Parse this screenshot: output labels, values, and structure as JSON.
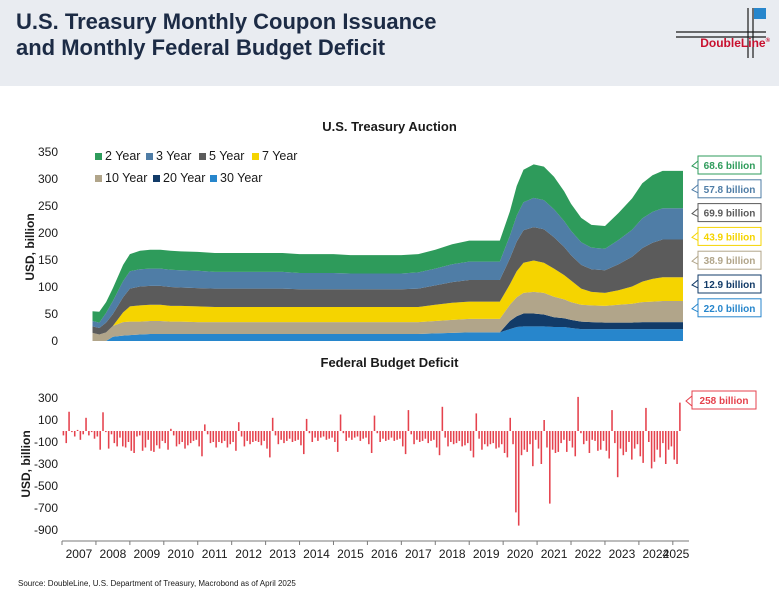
{
  "header": {
    "title_line1": "U.S. Treasury Monthly Coupon Issuance",
    "title_line2": "and Monthly Federal Budget Deficit",
    "logo_text": "DoubleLine",
    "logo_mark": "®"
  },
  "colors": {
    "y2": "#2e9b5b",
    "y3": "#4f7da6",
    "y5": "#5b5b5b",
    "y7": "#f5d400",
    "y10": "#b1a58a",
    "y20": "#123b68",
    "y30": "#2786cc",
    "deficit": "#e5424d",
    "header_bg": "#e9ecf1",
    "brand_red": "#c8102e"
  },
  "source": "Source: DoubleLine, U.S. Department of Treasury, Macrobond as of April 2025",
  "chart_data": [
    {
      "type": "area",
      "stacked": true,
      "title": "U.S. Treasury Auction",
      "ylabel": "USD, billion",
      "ylim": [
        0,
        350
      ],
      "yticks": [
        "0",
        "50",
        "100",
        "150",
        "200",
        "250",
        "300",
        "350"
      ],
      "legend_position": "top-left",
      "x": [
        2007.9,
        2008.1,
        2008.3,
        2008.5,
        2008.8,
        2009.0,
        2009.3,
        2009.6,
        2009.9,
        2010.2,
        2010.5,
        2011.0,
        2011.5,
        2012.0,
        2012.5,
        2013.0,
        2013.5,
        2014.0,
        2014.5,
        2015.0,
        2015.5,
        2016.0,
        2016.5,
        2017.0,
        2017.5,
        2018.0,
        2018.5,
        2019.0,
        2019.5,
        2019.9,
        2020.2,
        2020.4,
        2020.6,
        2020.9,
        2021.2,
        2021.5,
        2021.8,
        2022.0,
        2022.3,
        2022.6,
        2023.0,
        2023.4,
        2023.8,
        2024.1,
        2024.4,
        2024.7,
        2025.0,
        2025.3
      ],
      "series": [
        {
          "name": "30 Year",
          "color_key": "y30",
          "values": [
            0,
            0,
            0,
            8,
            10,
            11,
            12,
            13,
            13,
            13,
            13,
            13,
            13,
            13,
            13,
            13,
            13,
            13,
            13,
            13,
            13,
            13,
            13,
            13,
            13,
            14,
            15,
            16,
            16,
            16,
            22,
            26,
            27,
            27,
            27,
            26,
            26,
            24,
            22,
            22,
            22,
            22,
            22,
            22,
            22,
            22,
            22,
            22
          ]
        },
        {
          "name": "20 Year",
          "color_key": "y20",
          "values": [
            0,
            0,
            0,
            0,
            0,
            0,
            0,
            0,
            0,
            0,
            0,
            0,
            0,
            0,
            0,
            0,
            0,
            0,
            0,
            0,
            0,
            0,
            0,
            0,
            0,
            0,
            0,
            0,
            0,
            0,
            15,
            20,
            24,
            24,
            22,
            18,
            16,
            15,
            14,
            13,
            12,
            12,
            12,
            13,
            13,
            13,
            13,
            13
          ]
        },
        {
          "name": "10 Year",
          "color_key": "y10",
          "values": [
            15,
            12,
            16,
            20,
            25,
            25,
            24,
            24,
            24,
            23,
            23,
            22,
            22,
            22,
            22,
            22,
            22,
            22,
            22,
            22,
            22,
            22,
            22,
            22,
            22,
            23,
            24,
            25,
            25,
            25,
            30,
            35,
            38,
            40,
            40,
            38,
            35,
            33,
            31,
            31,
            31,
            33,
            35,
            37,
            38,
            39,
            39,
            39
          ]
        },
        {
          "name": "7 Year",
          "color_key": "y7",
          "values": [
            0,
            0,
            0,
            0,
            18,
            28,
            30,
            30,
            30,
            29,
            29,
            29,
            28,
            28,
            28,
            28,
            28,
            28,
            28,
            28,
            28,
            28,
            28,
            28,
            28,
            30,
            32,
            32,
            32,
            32,
            38,
            48,
            56,
            58,
            56,
            52,
            45,
            40,
            30,
            25,
            24,
            27,
            32,
            38,
            42,
            44,
            44,
            44
          ]
        },
        {
          "name": "5 Year",
          "color_key": "y5",
          "values": [
            12,
            12,
            18,
            22,
            28,
            33,
            35,
            35,
            35,
            35,
            34,
            34,
            34,
            34,
            34,
            34,
            34,
            33,
            33,
            33,
            33,
            33,
            33,
            33,
            34,
            36,
            38,
            40,
            40,
            40,
            48,
            55,
            60,
            62,
            62,
            58,
            52,
            47,
            44,
            42,
            42,
            48,
            55,
            62,
            67,
            70,
            70,
            70
          ]
        },
        {
          "name": "3 Year",
          "color_key": "y3",
          "values": [
            10,
            10,
            18,
            24,
            30,
            32,
            32,
            32,
            32,
            32,
            32,
            32,
            31,
            31,
            31,
            31,
            31,
            30,
            30,
            30,
            29,
            29,
            29,
            29,
            30,
            31,
            33,
            34,
            34,
            34,
            42,
            48,
            52,
            54,
            54,
            52,
            48,
            45,
            42,
            40,
            40,
            45,
            50,
            55,
            57,
            58,
            58,
            58
          ]
        },
        {
          "name": "2 Year",
          "color_key": "y2",
          "values": [
            18,
            20,
            20,
            24,
            30,
            32,
            34,
            35,
            35,
            35,
            35,
            35,
            35,
            35,
            35,
            35,
            35,
            35,
            35,
            35,
            34,
            34,
            34,
            34,
            34,
            35,
            37,
            39,
            39,
            39,
            45,
            55,
            60,
            62,
            62,
            60,
            55,
            50,
            45,
            42,
            42,
            50,
            58,
            65,
            68,
            69,
            69,
            69
          ]
        }
      ],
      "end_labels": [
        {
          "text": "68.6 billion",
          "color_key": "y2"
        },
        {
          "text": "57.8 billion",
          "color_key": "y3"
        },
        {
          "text": "69.9 billion",
          "color_key": "y5"
        },
        {
          "text": "43.9 billion",
          "color_key": "y7"
        },
        {
          "text": "38.9 billion",
          "color_key": "y10"
        },
        {
          "text": "12.9 billion",
          "color_key": "y20"
        },
        {
          "text": "22.0 billion",
          "color_key": "y30"
        }
      ]
    },
    {
      "type": "bar",
      "title": "Federal Budget Deficit",
      "ylabel": "USD, billion",
      "ylim": [
        -900,
        300
      ],
      "yticks": [
        "300",
        "100",
        "-100",
        "-300",
        "-500",
        "-700",
        "-900"
      ],
      "xticks": [
        "2007",
        "2008",
        "2009",
        "2010",
        "2011",
        "2012",
        "2013",
        "2014",
        "2015",
        "2016",
        "2017",
        "2018",
        "2019",
        "2020",
        "2021",
        "2022",
        "2023",
        "2024",
        "2025"
      ],
      "series_color_key": "deficit",
      "end_label": {
        "text": "258 billion"
      },
      "start": 2007.0,
      "values": [
        -40,
        -110,
        175,
        -10,
        -50,
        10,
        -80,
        -30,
        120,
        -40,
        -10,
        -70,
        -50,
        -170,
        170,
        -10,
        -160,
        -30,
        -110,
        -140,
        -60,
        -140,
        -150,
        -100,
        -180,
        -200,
        -50,
        -40,
        -180,
        -150,
        -80,
        -180,
        -190,
        -130,
        -160,
        -90,
        -110,
        -170,
        20,
        -40,
        -140,
        -120,
        -100,
        -160,
        -130,
        -110,
        -90,
        -80,
        -140,
        -230,
        60,
        -30,
        -110,
        -100,
        -150,
        -100,
        -110,
        -90,
        -150,
        -120,
        -100,
        -180,
        80,
        -50,
        -140,
        -90,
        -120,
        -100,
        -90,
        -100,
        -130,
        -90,
        -160,
        -240,
        120,
        -40,
        -120,
        -80,
        -110,
        -90,
        -70,
        -100,
        -90,
        -80,
        -130,
        -210,
        110,
        -20,
        -100,
        -60,
        -90,
        -60,
        -50,
        -80,
        -70,
        -60,
        -100,
        -190,
        150,
        -20,
        -90,
        -60,
        -80,
        -60,
        -50,
        -90,
        -70,
        -60,
        -120,
        -200,
        140,
        -20,
        -100,
        -70,
        -90,
        -80,
        -60,
        -90,
        -80,
        -70,
        -140,
        -210,
        190,
        -30,
        -120,
        -80,
        -100,
        -90,
        -70,
        -110,
        -90,
        -80,
        -150,
        -220,
        220,
        -60,
        -140,
        -100,
        -120,
        -110,
        -90,
        -140,
        -130,
        -110,
        -180,
        -240,
        160,
        -70,
        -170,
        -120,
        -140,
        -120,
        -110,
        -160,
        -150,
        -120,
        -200,
        -240,
        120,
        -120,
        -740,
        -860,
        -220,
        -170,
        -190,
        -120,
        -320,
        -80,
        -160,
        -300,
        100,
        -150,
        -660,
        -170,
        -200,
        -190,
        -110,
        -80,
        -190,
        -90,
        -150,
        -230,
        310,
        -20,
        -120,
        -90,
        -200,
        -80,
        -90,
        -180,
        -170,
        -90,
        -180,
        -250,
        190,
        -110,
        -420,
        -160,
        -220,
        -190,
        -100,
        -260,
        -160,
        -120,
        -230,
        -290,
        210,
        -100,
        -340,
        -280,
        -170,
        -240,
        -110,
        -300,
        -170,
        -140,
        -260,
        -300,
        258
      ]
    }
  ]
}
